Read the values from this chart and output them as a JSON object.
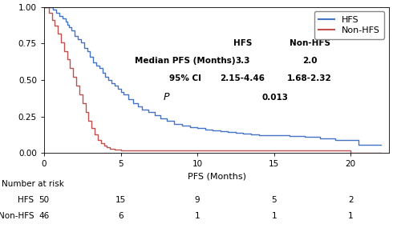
{
  "hfs_times": [
    0,
    0.4,
    0.6,
    0.8,
    1.0,
    1.2,
    1.4,
    1.5,
    1.6,
    1.8,
    2.0,
    2.2,
    2.4,
    2.6,
    2.8,
    3.0,
    3.2,
    3.4,
    3.6,
    3.8,
    4.0,
    4.2,
    4.4,
    4.6,
    4.8,
    5.0,
    5.2,
    5.5,
    5.8,
    6.1,
    6.4,
    6.8,
    7.2,
    7.6,
    8.0,
    8.5,
    9.0,
    9.5,
    10.0,
    10.5,
    11.0,
    11.5,
    12.0,
    12.5,
    13.0,
    13.5,
    14.0,
    14.5,
    15.0,
    15.5,
    16.0,
    17.0,
    18.0,
    19.0,
    19.5,
    20.0,
    20.5,
    21.0,
    21.5,
    22.0
  ],
  "hfs_surv": [
    1.0,
    1.0,
    0.98,
    0.96,
    0.94,
    0.92,
    0.9,
    0.88,
    0.86,
    0.84,
    0.8,
    0.78,
    0.76,
    0.72,
    0.7,
    0.66,
    0.62,
    0.6,
    0.58,
    0.55,
    0.52,
    0.5,
    0.48,
    0.46,
    0.44,
    0.42,
    0.4,
    0.37,
    0.34,
    0.32,
    0.3,
    0.28,
    0.26,
    0.24,
    0.22,
    0.2,
    0.19,
    0.18,
    0.17,
    0.16,
    0.155,
    0.15,
    0.145,
    0.14,
    0.135,
    0.13,
    0.125,
    0.125,
    0.125,
    0.12,
    0.115,
    0.11,
    0.1,
    0.09,
    0.09,
    0.09,
    0.055,
    0.055,
    0.055,
    0.055
  ],
  "nonhfs_times": [
    0,
    0.3,
    0.5,
    0.7,
    0.9,
    1.1,
    1.3,
    1.5,
    1.7,
    1.9,
    2.1,
    2.3,
    2.5,
    2.7,
    2.9,
    3.1,
    3.3,
    3.5,
    3.7,
    3.9,
    4.1,
    4.3,
    4.6,
    5.0,
    5.5,
    6.0,
    6.5,
    7.0,
    8.0,
    9.0,
    9.5,
    19.5,
    20.0,
    22.0
  ],
  "nonhfs_surv": [
    1.0,
    0.96,
    0.91,
    0.87,
    0.82,
    0.76,
    0.7,
    0.64,
    0.58,
    0.52,
    0.46,
    0.4,
    0.34,
    0.28,
    0.22,
    0.17,
    0.13,
    0.09,
    0.07,
    0.05,
    0.04,
    0.03,
    0.025,
    0.02,
    0.02,
    0.02,
    0.02,
    0.02,
    0.02,
    0.02,
    0.02,
    0.02,
    0.0,
    0.0
  ],
  "hfs_color": "#4472C4",
  "nonhfs_color": "#C0504D",
  "xlabel": "PFS (Months)",
  "xlim": [
    0,
    22.5
  ],
  "ylim": [
    0,
    1.0
  ],
  "yticks": [
    0.0,
    0.25,
    0.5,
    0.75,
    1.0
  ],
  "xticks": [
    0,
    5,
    10,
    15,
    20
  ],
  "risk_times": [
    0,
    5,
    10,
    15,
    20
  ],
  "hfs_at_risk": [
    50,
    15,
    9,
    5,
    2
  ],
  "nonhfs_at_risk": [
    46,
    6,
    1,
    1,
    1
  ],
  "legend_labels": [
    "HFS",
    "Non-HFS"
  ],
  "table_label": "Number at risk"
}
